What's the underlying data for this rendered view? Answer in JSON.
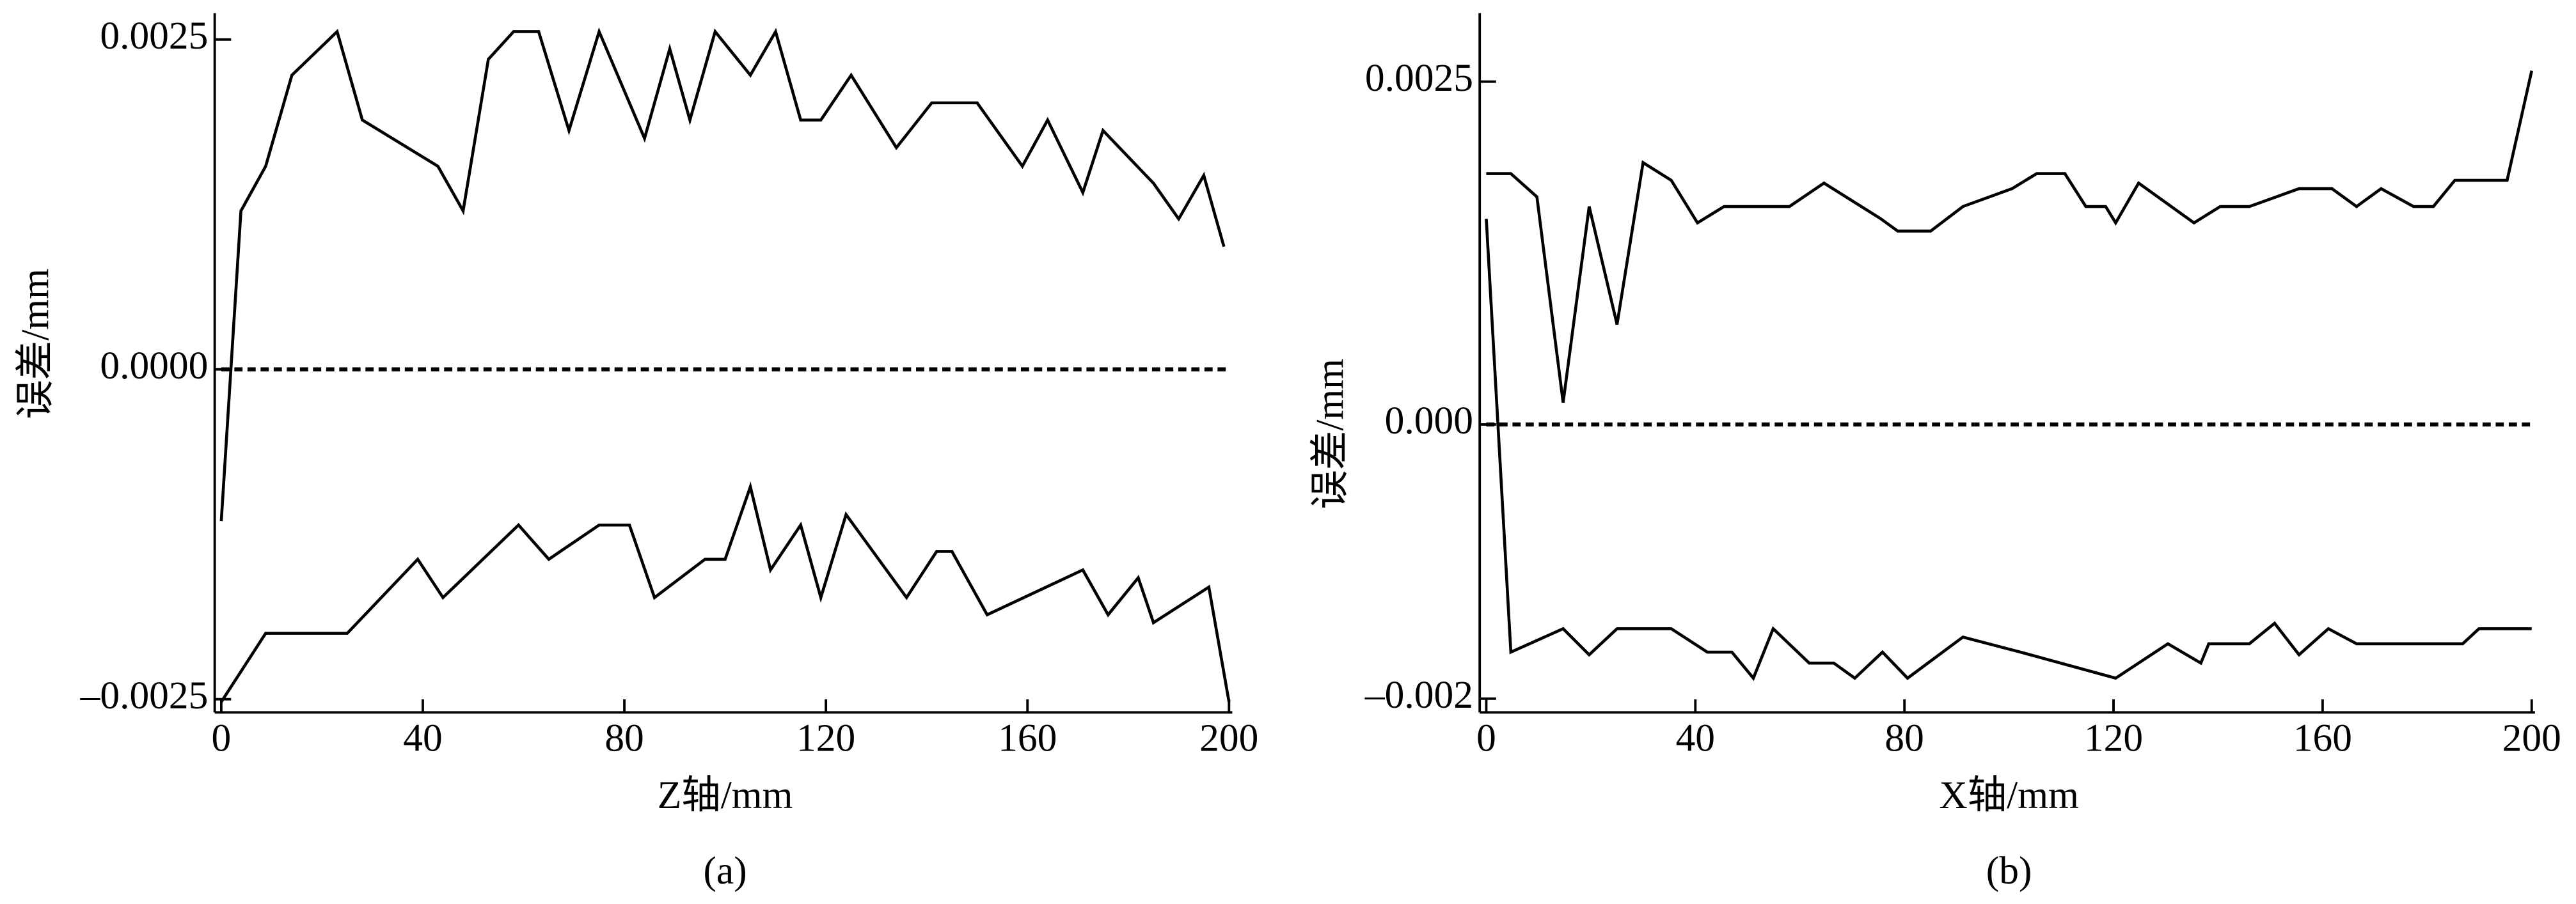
{
  "chart_data": [
    {
      "type": "line",
      "caption": "(a)",
      "x_label": "Z轴/mm",
      "y_label": "误差/mm",
      "xlim": [
        0,
        200
      ],
      "xticks": [
        0,
        40,
        80,
        120,
        160,
        200
      ],
      "ylim": [
        -0.0026,
        0.0027
      ],
      "yticks": [
        0.0025,
        {
          "value": 0,
          "label": "0.0000"
        },
        {
          "value": -0.0025,
          "label": "–0.0025"
        }
      ],
      "series": [
        {
          "color": "#000000",
          "x": [
            0,
            3.9,
            8.8,
            14,
            23,
            28,
            43,
            48,
            53,
            58,
            63,
            69,
            75,
            84,
            89,
            93,
            98,
            105,
            110,
            115,
            119,
            125,
            134,
            141,
            150,
            159,
            164,
            171,
            175,
            185,
            190,
            195,
            199
          ],
          "values": [
            -0.00115,
            0.0012,
            0.00154,
            0.00223,
            0.00256,
            0.00189,
            0.00154,
            0.0012,
            0.00235,
            0.00256,
            0.00256,
            0.00181,
            0.00256,
            0.00175,
            0.00243,
            0.00189,
            0.00256,
            0.00223,
            0.00256,
            0.00189,
            0.00189,
            0.00223,
            0.00168,
            0.00202,
            0.00202,
            0.00154,
            0.00189,
            0.00134,
            0.00181,
            0.00141,
            0.00114,
            0.00147,
            0.00093
          ]
        },
        {
          "color": "#000000",
          "x": [
            0,
            8.8,
            25,
            39,
            44,
            59,
            65,
            75,
            81,
            86,
            96,
            100,
            105,
            109,
            115,
            119,
            124,
            136,
            142,
            145,
            152,
            171,
            176,
            182,
            185,
            196,
            200
          ],
          "values": [
            -0.00252,
            -0.002,
            -0.002,
            -0.00144,
            -0.00173,
            -0.00118,
            -0.00144,
            -0.00118,
            -0.00118,
            -0.00173,
            -0.00144,
            -0.00144,
            -0.00089,
            -0.00152,
            -0.00118,
            -0.00173,
            -0.0011,
            -0.00173,
            -0.00138,
            -0.00138,
            -0.00186,
            -0.00152,
            -0.00186,
            -0.00158,
            -0.00192,
            -0.00165,
            -0.00252
          ]
        }
      ]
    },
    {
      "type": "line",
      "caption": "(b)",
      "x_label": "X轴/mm",
      "y_label": "误差/mm",
      "xlim": [
        0,
        200
      ],
      "xticks": [
        0,
        40,
        80,
        120,
        160,
        200
      ],
      "ylim": [
        -0.0021,
        0.003
      ],
      "yticks": [
        0.0025,
        {
          "value": 0,
          "label": "0.000"
        },
        {
          "value": -0.002,
          "label": "–0.002"
        }
      ],
      "series": [
        {
          "color": "#000000",
          "x": [
            0,
            4.7,
            9.7,
            14.7,
            19.7,
            25,
            30,
            35.4,
            40.4,
            45.5,
            58,
            64.6,
            75.5,
            78.7,
            85,
            91.2,
            100.6,
            105.3,
            110.7,
            114.7,
            118.5,
            120.4,
            124.8,
            135.4,
            140.4,
            146,
            155.5,
            161.8,
            166.5,
            171.2,
            177.4,
            181.2,
            185.3,
            195.3,
            200
          ],
          "values": [
            0.00183,
            0.00183,
            0.00166,
            0.00016,
            0.00159,
            0.00073,
            0.00191,
            0.00178,
            0.00147,
            0.00159,
            0.00159,
            0.00176,
            0.0015,
            0.00141,
            0.00141,
            0.00159,
            0.00172,
            0.00183,
            0.00183,
            0.00159,
            0.00159,
            0.00147,
            0.00176,
            0.00147,
            0.00159,
            0.00159,
            0.00172,
            0.00172,
            0.00159,
            0.00172,
            0.00159,
            0.00159,
            0.00178,
            0.00178,
            0.00258
          ]
        },
        {
          "color": "#000000",
          "x": [
            0,
            4.7,
            14.7,
            19.7,
            25,
            35.4,
            42.3,
            47,
            51.1,
            54.9,
            61.8,
            66.5,
            70.5,
            75.8,
            80.6,
            91.2,
            102.2,
            120.4,
            130.4,
            136.7,
            138.2,
            146,
            150.8,
            155.5,
            161.1,
            166.5,
            186.8,
            189.9,
            200
          ],
          "values": [
            0.0015,
            -0.00166,
            -0.00149,
            -0.00168,
            -0.00149,
            -0.00149,
            -0.00166,
            -0.00166,
            -0.00185,
            -0.00149,
            -0.00174,
            -0.00174,
            -0.00185,
            -0.00166,
            -0.00185,
            -0.00155,
            -0.00166,
            -0.00185,
            -0.0016,
            -0.00174,
            -0.0016,
            -0.0016,
            -0.00145,
            -0.00168,
            -0.00149,
            -0.0016,
            -0.0016,
            -0.00149,
            -0.00149
          ]
        }
      ]
    }
  ]
}
